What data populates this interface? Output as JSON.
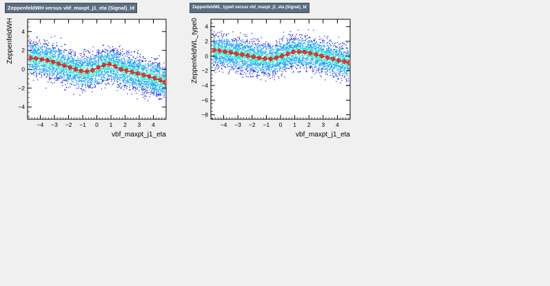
{
  "chart_data": [
    {
      "type": "scatter",
      "title": "ZeppenfeldWH versus vbf_maxpt_j1_eta (Signal)_ld",
      "xlabel": "vbf_maxpt_j1_eta",
      "ylabel": "ZeppenfeldWH",
      "xlim": [
        -4.9,
        4.9
      ],
      "ylim": [
        -5.3,
        5.3
      ],
      "xticks": [
        -4,
        -3,
        -2,
        -1,
        0,
        1,
        2,
        3,
        4
      ],
      "yticks": [
        -4,
        -2,
        0,
        2,
        4
      ],
      "grid": false,
      "density_band": {
        "halfwidth": 2.0,
        "colors": [
          "#1a24ff",
          "#1aa0ff",
          "#22e6d8"
        ]
      },
      "series": [
        {
          "color": "#ff0000",
          "x": [
            -4.7,
            -4.3,
            -3.9,
            -3.5,
            -3.1,
            -2.7,
            -2.3,
            -1.9,
            -1.5,
            -1.1,
            -0.7,
            -0.3,
            0.1,
            0.5,
            0.9,
            1.3,
            1.7,
            2.1,
            2.5,
            2.9,
            3.3,
            3.7,
            4.1,
            4.5,
            4.8
          ],
          "y": [
            1.2,
            1.15,
            1.05,
            0.95,
            0.8,
            0.6,
            0.4,
            0.2,
            0.0,
            -0.2,
            -0.25,
            -0.1,
            0.2,
            0.45,
            0.55,
            0.3,
            0.0,
            -0.15,
            -0.3,
            -0.45,
            -0.6,
            -0.75,
            -0.95,
            -1.15,
            -1.4
          ]
        }
      ]
    },
    {
      "type": "scatter",
      "title": "ZeppenfeldWL_type0 versus vbf_maxpt_j1_eta (Signal)_ld",
      "xlabel": "vbf_maxpt_j1_eta",
      "ylabel": "ZeppenfeldWL_type0",
      "xlim": [
        -4.9,
        4.9
      ],
      "ylim": [
        -8.6,
        5.0
      ],
      "xticks": [
        -4,
        -3,
        -2,
        -1,
        0,
        1,
        2,
        3,
        4
      ],
      "yticks": [
        -8,
        -6,
        -4,
        -2,
        0,
        2,
        4
      ],
      "grid": false,
      "density_band": {
        "halfwidth": 2.4,
        "colors": [
          "#1a24ff",
          "#1aa0ff",
          "#22e6d8"
        ]
      },
      "series": [
        {
          "color": "#ff0000",
          "x": [
            -4.7,
            -4.3,
            -3.9,
            -3.5,
            -3.1,
            -2.7,
            -2.3,
            -1.9,
            -1.5,
            -1.1,
            -0.7,
            -0.3,
            0.1,
            0.5,
            0.9,
            1.3,
            1.7,
            2.1,
            2.5,
            2.9,
            3.3,
            3.7,
            4.1,
            4.5,
            4.8
          ],
          "y": [
            0.8,
            0.75,
            0.6,
            0.5,
            0.3,
            0.2,
            0.05,
            -0.1,
            -0.25,
            -0.35,
            -0.4,
            -0.25,
            0.0,
            0.3,
            0.55,
            0.6,
            0.55,
            0.4,
            0.2,
            0.0,
            -0.2,
            -0.4,
            -0.6,
            -0.75,
            -0.9
          ]
        }
      ]
    }
  ]
}
